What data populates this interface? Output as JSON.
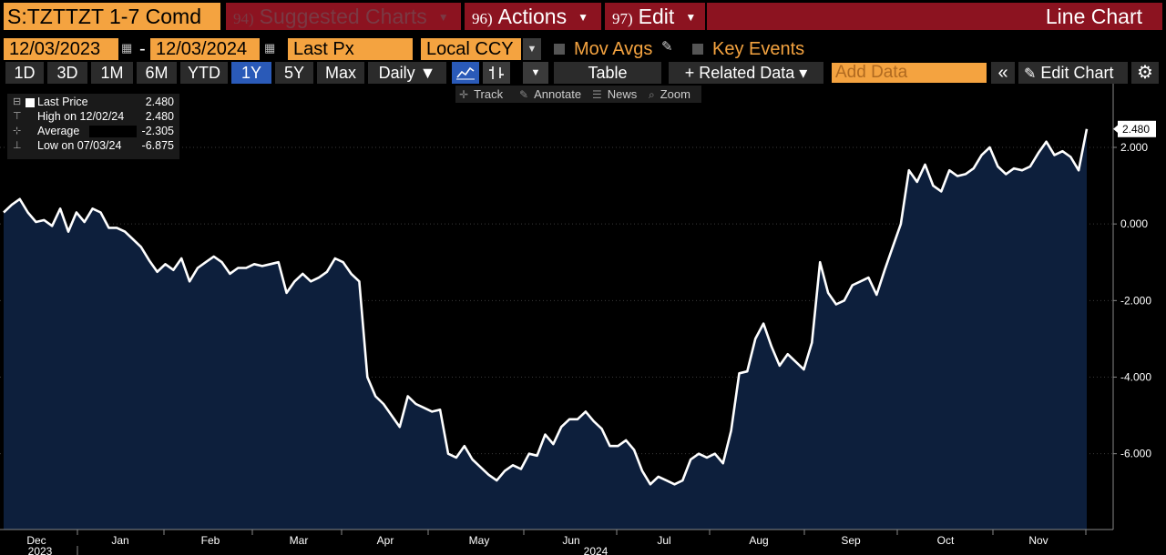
{
  "header": {
    "ticker": "S:TZTTZT 1-7 Comd",
    "suggested_num": "94)",
    "suggested_label": "Suggested Charts",
    "actions_num": "96)",
    "actions_label": "Actions",
    "edit_num": "97)",
    "edit_label": "Edit",
    "chart_type": "Line Chart"
  },
  "controls": {
    "start_date": "12/03/2023",
    "date_dash": "-",
    "end_date": "12/03/2024",
    "field": "Last Px",
    "currency": "Local CCY",
    "mov_avgs": "Mov Avgs",
    "key_events": "Key Events"
  },
  "periods": [
    "1D",
    "3D",
    "1M",
    "6M",
    "YTD",
    "1Y",
    "5Y",
    "Max"
  ],
  "active_period": "1Y",
  "toolbar": {
    "frequency": "Daily ▼",
    "table": "Table",
    "related": "+ Related Data ▾",
    "add_data_placeholder": "Add Data",
    "collapse": "«",
    "edit_chart": "Edit Chart",
    "settings_icon": "gear-icon"
  },
  "tools": {
    "track": "Track",
    "annotate": "Annotate",
    "news": "News",
    "zoom": "Zoom"
  },
  "legend": {
    "last_label": "Last Price",
    "last_value": "2.480",
    "high_label": "High on 12/02/24",
    "high_value": "2.480",
    "avg_label": "Average",
    "avg_value": "-2.305",
    "low_label": "Low on 07/03/24",
    "low_value": "-6.875"
  },
  "colors": {
    "accent_orange": "#f4a340",
    "header_red": "#8c1320",
    "active_blue": "#2a5ab8",
    "fill": "#0d1f3c",
    "line": "#ffffff"
  },
  "chart_data": {
    "type": "area",
    "series": [
      {
        "values": [
          0.3,
          0.5,
          0.65,
          0.3,
          0.05,
          0.1,
          -0.05,
          0.4,
          -0.2,
          0.3,
          0.05,
          0.4,
          0.3,
          -0.1,
          -0.1,
          -0.2,
          -0.4,
          -0.6,
          -0.95,
          -1.25,
          -1.05,
          -1.2,
          -0.9,
          -1.5,
          -1.15,
          -1.0,
          -0.85,
          -1.0,
          -1.3,
          -1.15,
          -1.15,
          -1.05,
          -1.1,
          -1.05,
          -1.0,
          -1.8,
          -1.5,
          -1.3,
          -1.5,
          -1.4,
          -1.25,
          -0.9,
          -1.0,
          -1.3,
          -1.5,
          -4.0,
          -4.5,
          -4.7,
          -5.0,
          -5.3,
          -4.5,
          -4.7,
          -4.8,
          -4.9,
          -4.85,
          -6.0,
          -6.1,
          -5.8,
          -6.15,
          -6.35,
          -6.55,
          -6.7,
          -6.45,
          -6.3,
          -6.4,
          -6.0,
          -6.05,
          -5.5,
          -5.75,
          -5.3,
          -5.1,
          -5.1,
          -4.9,
          -5.15,
          -5.35,
          -5.8,
          -5.8,
          -5.65,
          -5.9,
          -6.45,
          -6.8,
          -6.6,
          -6.7,
          -6.8,
          -6.7,
          -6.15,
          -6.0,
          -6.1,
          -6.0,
          -6.25,
          -5.4,
          -3.9,
          -3.85,
          -3.0,
          -2.6,
          -3.2,
          -3.7,
          -3.4,
          -3.6,
          -3.8,
          -3.1,
          -1.0,
          -1.8,
          -2.1,
          -2.0,
          -1.6,
          -1.5,
          -1.4,
          -1.85,
          -1.2,
          -0.6,
          0.0,
          1.4,
          1.1,
          1.55,
          1.0,
          0.85,
          1.4,
          1.25,
          1.3,
          1.45,
          1.8,
          2.0,
          1.5,
          1.3,
          1.45,
          1.4,
          1.5,
          1.85,
          2.15,
          1.8,
          1.9,
          1.75,
          1.4,
          2.48
        ]
      }
    ],
    "x_labels": [
      "Dec",
      "Jan",
      "Feb",
      "Mar",
      "Apr",
      "May",
      "Jun",
      "Jul",
      "Aug",
      "Sep",
      "Oct",
      "Nov"
    ],
    "year_labels": [
      "2023",
      "2024"
    ],
    "y_ticks": [
      2.0,
      0.0,
      -2.0,
      -4.0,
      -6.0
    ],
    "y_tick_labels": [
      "2.000",
      "0.000",
      "-2.000",
      "-4.000",
      "-6.000"
    ],
    "ylim": [
      -7.6,
      2.95
    ],
    "last_value_label": "2.480",
    "grid": true,
    "legend_position": "top-left"
  }
}
